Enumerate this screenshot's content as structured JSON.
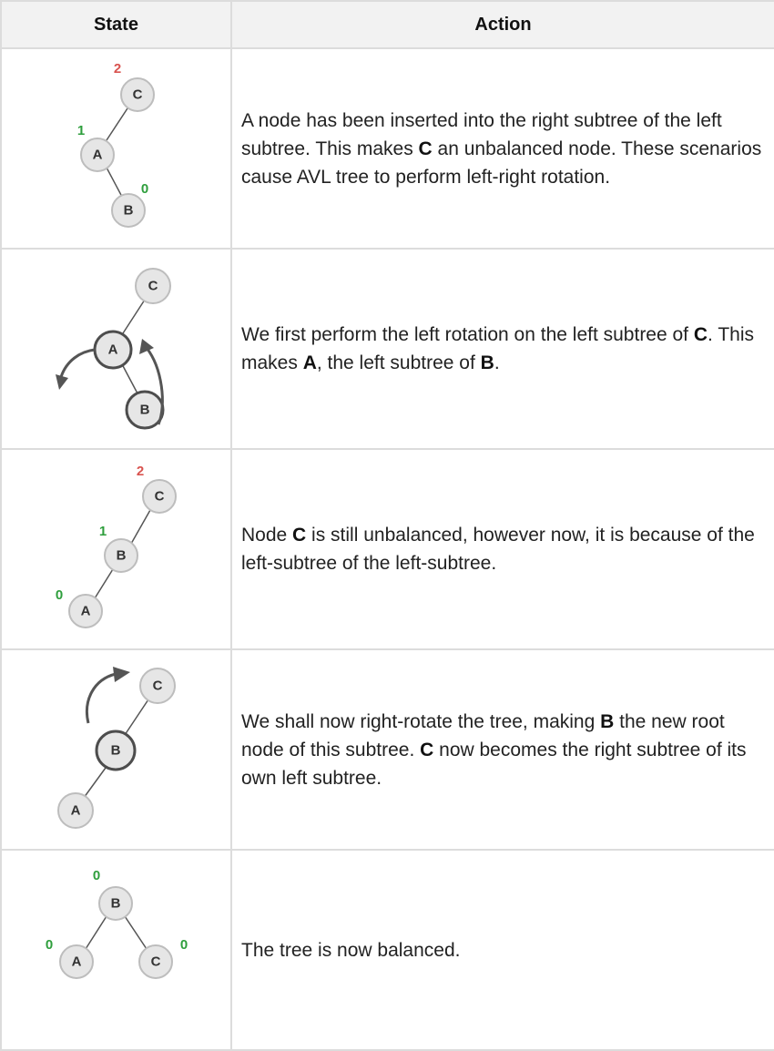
{
  "header": {
    "state": "State",
    "action": "Action"
  },
  "colors": {
    "balance_unbalanced": "#d9534f",
    "balance_ok": "#2e9e3c",
    "node_fill": "#e6e6e6"
  },
  "rows": [
    {
      "nodes": {
        "c": "C",
        "a": "A",
        "b": "B"
      },
      "balance": {
        "c": "2",
        "a": "1",
        "b": "0"
      },
      "action": {
        "t1": "A node has been inserted into the right subtree of the left subtree. This makes ",
        "b1": "C",
        "t2": " an unbalanced node. These scenarios cause AVL tree to perform left-right rotation."
      }
    },
    {
      "nodes": {
        "c": "C",
        "a": "A",
        "b": "B"
      },
      "action": {
        "t1": "We first perform the left rotation on the left subtree of ",
        "b1": "C",
        "t2": ". This makes ",
        "b2": "A",
        "t3": ", the left subtree of ",
        "b3": "B",
        "t4": "."
      }
    },
    {
      "nodes": {
        "c": "C",
        "b": "B",
        "a": "A"
      },
      "balance": {
        "c": "2",
        "b": "1",
        "a": "0"
      },
      "action": {
        "t1": "Node ",
        "b1": "C",
        "t2": " is still unbalanced, however now, it is because of the left-subtree of the left-subtree."
      }
    },
    {
      "nodes": {
        "c": "C",
        "b": "B",
        "a": "A"
      },
      "action": {
        "t1": "We shall now right-rotate the tree, making ",
        "b1": "B",
        "t2": " the new root node of this subtree. ",
        "b2": "C",
        "t3": " now becomes the right subtree of its own left subtree."
      }
    },
    {
      "nodes": {
        "b": "B",
        "a": "A",
        "c": "C"
      },
      "balance": {
        "b": "0",
        "a": "0",
        "c": "0"
      },
      "action": {
        "t1": "The tree is now balanced."
      }
    }
  ]
}
